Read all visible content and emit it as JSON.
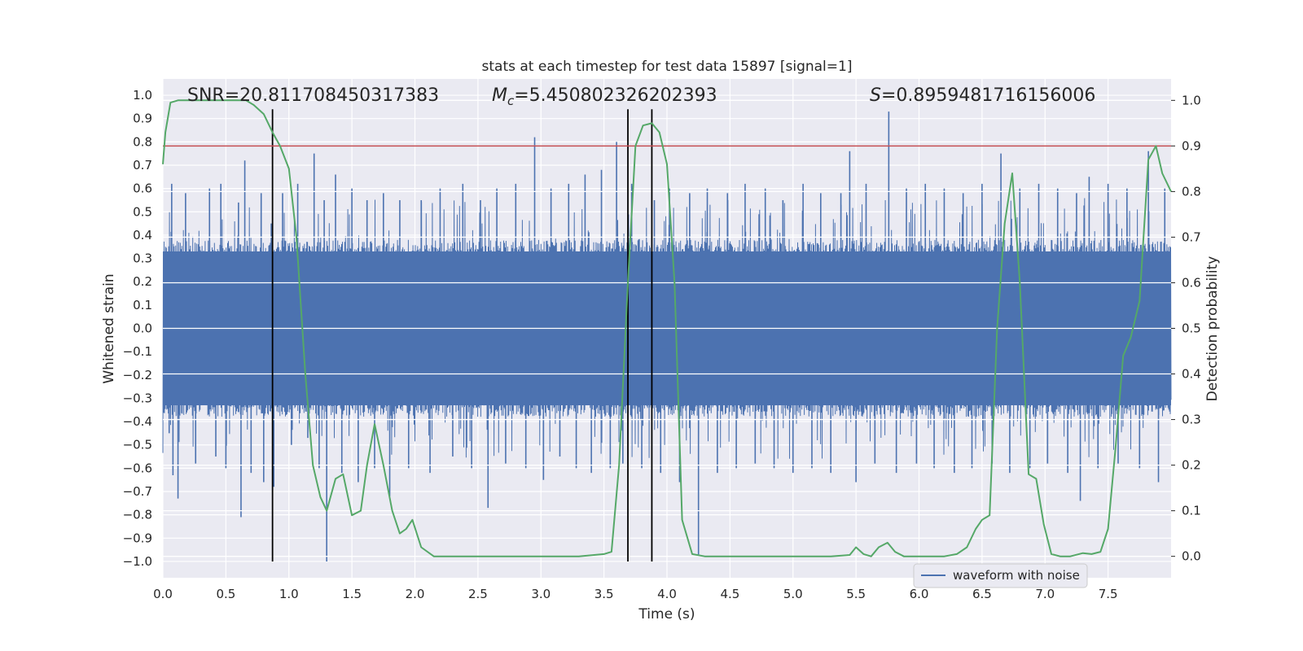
{
  "chart_data": {
    "type": "line",
    "title": "stats at each timestep for test data 15897 [signal=1]",
    "xlabel": "Time (s)",
    "ylabel": "Whitened strain",
    "y2label": "Detection probability",
    "xlim": [
      0.0,
      8.0
    ],
    "ylim": [
      -1.07,
      1.07
    ],
    "y2lim": [
      -0.047,
      1.047
    ],
    "xticks": [
      "0.0",
      "0.5",
      "1.0",
      "1.5",
      "2.0",
      "2.5",
      "3.0",
      "3.5",
      "4.0",
      "4.5",
      "5.0",
      "5.5",
      "6.0",
      "6.5",
      "7.0",
      "7.5"
    ],
    "xtick_values": [
      0.0,
      0.5,
      1.0,
      1.5,
      2.0,
      2.5,
      3.0,
      3.5,
      4.0,
      4.5,
      5.0,
      5.5,
      6.0,
      6.5,
      7.0,
      7.5
    ],
    "yticks": [
      "1.0",
      "0.9",
      "0.8",
      "0.7",
      "0.6",
      "0.5",
      "0.4",
      "0.3",
      "0.2",
      "0.1",
      "0.0",
      "−0.1",
      "−0.2",
      "−0.3",
      "−0.4",
      "−0.5",
      "−0.6",
      "−0.7",
      "−0.8",
      "−0.9",
      "−1.0"
    ],
    "ytick_values": [
      1.0,
      0.9,
      0.8,
      0.7,
      0.6,
      0.5,
      0.4,
      0.3,
      0.2,
      0.1,
      0.0,
      -0.1,
      -0.2,
      -0.3,
      -0.4,
      -0.5,
      -0.6,
      -0.7,
      -0.8,
      -0.9,
      -1.0
    ],
    "y2ticks": [
      "1.0",
      "0.9",
      "0.8",
      "0.7",
      "0.6",
      "0.5",
      "0.4",
      "0.3",
      "0.2",
      "0.1",
      "0.0"
    ],
    "y2tick_values": [
      1.0,
      0.9,
      0.8,
      0.7,
      0.6,
      0.5,
      0.4,
      0.3,
      0.2,
      0.1,
      0.0
    ],
    "annotations": {
      "snr": "SNR=20.811708450317383",
      "mc_symbol": "M",
      "mc_sub": "c",
      "mc_value": "=5.450802326202393",
      "s_symbol": "S",
      "s_value": "=0.8959481716156006"
    },
    "vertical_lines_s": [
      0.87,
      3.69,
      3.88
    ],
    "vertical_line_range": [
      -1.0,
      0.94
    ],
    "threshold_probability": 0.9,
    "waveform_envelope_abs": 0.33,
    "waveform_spikes": [
      [
        0.05,
        -0.45
      ],
      [
        0.07,
        0.62
      ],
      [
        0.08,
        -0.63
      ],
      [
        0.12,
        -0.73
      ],
      [
        0.18,
        0.58
      ],
      [
        0.26,
        -0.58
      ],
      [
        0.37,
        0.6
      ],
      [
        0.42,
        -0.55
      ],
      [
        0.46,
        0.62
      ],
      [
        0.5,
        -0.6
      ],
      [
        0.6,
        0.54
      ],
      [
        0.62,
        -0.81
      ],
      [
        0.65,
        0.72
      ],
      [
        0.7,
        -0.62
      ],
      [
        0.78,
        0.58
      ],
      [
        0.8,
        -0.66
      ],
      [
        0.86,
        0.45
      ],
      [
        0.88,
        -0.68
      ],
      [
        0.95,
        0.58
      ],
      [
        1.02,
        -0.5
      ],
      [
        1.07,
        0.62
      ],
      [
        1.15,
        -0.47
      ],
      [
        1.2,
        0.75
      ],
      [
        1.24,
        -0.6
      ],
      [
        1.28,
        0.55
      ],
      [
        1.3,
        -1.0
      ],
      [
        1.37,
        0.66
      ],
      [
        1.42,
        -0.62
      ],
      [
        1.5,
        0.6
      ],
      [
        1.55,
        -0.66
      ],
      [
        1.62,
        0.55
      ],
      [
        1.68,
        -0.6
      ],
      [
        1.75,
        0.58
      ],
      [
        1.8,
        -0.72
      ],
      [
        1.88,
        0.55
      ],
      [
        1.95,
        -0.6
      ],
      [
        2.05,
        0.55
      ],
      [
        2.12,
        -0.62
      ],
      [
        2.2,
        0.6
      ],
      [
        2.3,
        -0.55
      ],
      [
        2.38,
        0.62
      ],
      [
        2.45,
        -0.6
      ],
      [
        2.52,
        0.55
      ],
      [
        2.58,
        -0.77
      ],
      [
        2.65,
        0.6
      ],
      [
        2.72,
        -0.58
      ],
      [
        2.8,
        0.62
      ],
      [
        2.88,
        -0.6
      ],
      [
        2.95,
        0.82
      ],
      [
        3.02,
        -0.65
      ],
      [
        3.08,
        0.6
      ],
      [
        3.15,
        -0.55
      ],
      [
        3.22,
        0.62
      ],
      [
        3.28,
        -0.6
      ],
      [
        3.35,
        0.66
      ],
      [
        3.4,
        -0.62
      ],
      [
        3.48,
        0.68
      ],
      [
        3.55,
        -0.6
      ],
      [
        3.6,
        0.8
      ],
      [
        3.65,
        -0.58
      ],
      [
        3.72,
        0.62
      ],
      [
        3.8,
        -0.6
      ],
      [
        3.9,
        0.55
      ],
      [
        3.95,
        -0.62
      ],
      [
        4.02,
        0.6
      ],
      [
        4.1,
        -0.66
      ],
      [
        4.18,
        0.58
      ],
      [
        4.25,
        -0.97
      ],
      [
        4.32,
        0.6
      ],
      [
        4.4,
        -0.62
      ],
      [
        4.48,
        0.58
      ],
      [
        4.55,
        -0.6
      ],
      [
        4.62,
        0.62
      ],
      [
        4.7,
        -0.58
      ],
      [
        4.78,
        0.6
      ],
      [
        4.85,
        -0.6
      ],
      [
        4.92,
        0.55
      ],
      [
        5.0,
        -0.62
      ],
      [
        5.08,
        0.62
      ],
      [
        5.15,
        -0.6
      ],
      [
        5.22,
        0.58
      ],
      [
        5.3,
        -0.62
      ],
      [
        5.38,
        0.58
      ],
      [
        5.45,
        0.76
      ],
      [
        5.5,
        -0.66
      ],
      [
        5.58,
        0.62
      ],
      [
        5.65,
        -0.58
      ],
      [
        5.76,
        0.93
      ],
      [
        5.82,
        -0.62
      ],
      [
        5.9,
        0.6
      ],
      [
        5.98,
        -0.58
      ],
      [
        6.05,
        0.62
      ],
      [
        6.12,
        -0.6
      ],
      [
        6.2,
        0.6
      ],
      [
        6.28,
        -0.62
      ],
      [
        6.35,
        0.58
      ],
      [
        6.42,
        -0.6
      ],
      [
        6.5,
        0.62
      ],
      [
        6.58,
        -0.58
      ],
      [
        6.65,
        0.75
      ],
      [
        6.72,
        -0.62
      ],
      [
        6.8,
        0.6
      ],
      [
        6.88,
        -0.6
      ],
      [
        6.95,
        0.62
      ],
      [
        7.02,
        -0.58
      ],
      [
        7.1,
        0.6
      ],
      [
        7.18,
        -0.62
      ],
      [
        7.25,
        0.58
      ],
      [
        7.28,
        -0.74
      ],
      [
        7.35,
        0.65
      ],
      [
        7.42,
        -0.6
      ],
      [
        7.5,
        0.62
      ],
      [
        7.58,
        -0.58
      ],
      [
        7.65,
        0.6
      ],
      [
        7.75,
        -0.6
      ],
      [
        7.82,
        0.76
      ],
      [
        7.9,
        -0.66
      ],
      [
        7.95,
        0.6
      ]
    ],
    "series": [
      {
        "name": "waveform with noise",
        "color": "#4c72b0",
        "axis": "left",
        "kind": "noisy waveform"
      },
      {
        "name": "detection probability",
        "color": "#55a868",
        "axis": "right",
        "x": [
          0.0,
          0.02,
          0.06,
          0.12,
          0.2,
          0.3,
          0.4,
          0.5,
          0.6,
          0.66,
          0.72,
          0.8,
          0.87,
          0.93,
          1.0,
          1.06,
          1.13,
          1.19,
          1.25,
          1.3,
          1.37,
          1.43,
          1.5,
          1.57,
          1.62,
          1.68,
          1.75,
          1.82,
          1.88,
          1.93,
          1.98,
          2.05,
          2.15,
          2.5,
          3.0,
          3.3,
          3.5,
          3.56,
          3.62,
          3.69,
          3.75,
          3.81,
          3.88,
          3.94,
          4.0,
          4.06,
          4.12,
          4.2,
          4.3,
          4.5,
          5.0,
          5.3,
          5.45,
          5.5,
          5.56,
          5.62,
          5.68,
          5.75,
          5.81,
          5.88,
          6.0,
          6.2,
          6.3,
          6.38,
          6.45,
          6.5,
          6.56,
          6.62,
          6.68,
          6.74,
          6.8,
          6.87,
          6.93,
          6.99,
          7.05,
          7.12,
          7.2,
          7.3,
          7.37,
          7.44,
          7.5,
          7.56,
          7.62,
          7.68,
          7.75,
          7.82,
          7.88,
          7.93,
          8.0
        ],
        "values": [
          0.86,
          0.93,
          0.995,
          1.0,
          1.0,
          1.0,
          1.0,
          1.0,
          1.0,
          1.0,
          0.99,
          0.97,
          0.93,
          0.9,
          0.85,
          0.7,
          0.4,
          0.2,
          0.13,
          0.1,
          0.17,
          0.18,
          0.09,
          0.1,
          0.2,
          0.29,
          0.2,
          0.1,
          0.05,
          0.06,
          0.08,
          0.02,
          0.0,
          0.0,
          0.0,
          0.0,
          0.005,
          0.01,
          0.2,
          0.6,
          0.9,
          0.945,
          0.95,
          0.93,
          0.86,
          0.6,
          0.08,
          0.005,
          0.0,
          0.0,
          0.0,
          0.0,
          0.003,
          0.02,
          0.005,
          0.0,
          0.02,
          0.03,
          0.01,
          0.0,
          0.0,
          0.0,
          0.005,
          0.02,
          0.06,
          0.08,
          0.09,
          0.5,
          0.73,
          0.84,
          0.6,
          0.18,
          0.17,
          0.07,
          0.005,
          0.0,
          0.0,
          0.007,
          0.005,
          0.01,
          0.06,
          0.24,
          0.44,
          0.48,
          0.56,
          0.87,
          0.9,
          0.84,
          0.8
        ]
      },
      {
        "name": "threshold",
        "color": "#c44e52",
        "axis": "right",
        "value": 0.9
      }
    ],
    "legend": {
      "label": "waveform with noise",
      "location": "lower-right"
    }
  }
}
